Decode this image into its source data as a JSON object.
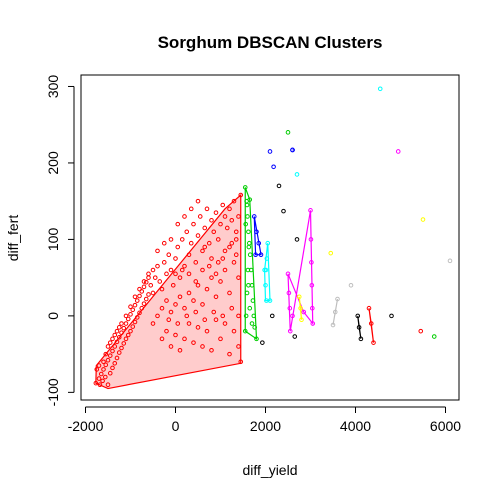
{
  "chart_data": {
    "type": "scatter",
    "title": "Sorghum DBSCAN Clusters",
    "xlabel": "diff_yield",
    "ylabel": "diff_fert",
    "xlim": [
      -2100,
      6300
    ],
    "ylim": [
      -110,
      315
    ],
    "x_ticks": [
      -2000,
      0,
      2000,
      4000,
      6000
    ],
    "y_ticks": [
      -100,
      0,
      100,
      200,
      300
    ],
    "x_tick_labels": [
      "-2000",
      "0",
      "2000",
      "4000",
      "6000"
    ],
    "y_tick_labels": [
      "-100",
      "0",
      "100",
      "200",
      "300"
    ],
    "grid": false,
    "legend": "none",
    "clusters": [
      {
        "color": "#ff0000",
        "hull": [
          [
            -1770,
            -88
          ],
          [
            -1500,
            -95
          ],
          [
            1450,
            -62
          ],
          [
            1450,
            158
          ],
          [
            1100,
            140
          ],
          [
            -1760,
            -65
          ]
        ],
        "points": [
          [
            -1770,
            -88
          ],
          [
            -1700,
            -82
          ],
          [
            -1650,
            -76
          ],
          [
            -1600,
            -70
          ],
          [
            -1550,
            -64
          ],
          [
            -1500,
            -58
          ],
          [
            -1450,
            -52
          ],
          [
            -1400,
            -46
          ],
          [
            -1350,
            -40
          ],
          [
            -1300,
            -34
          ],
          [
            -1250,
            -28
          ],
          [
            -1200,
            -22
          ],
          [
            -1150,
            -16
          ],
          [
            -1100,
            -10
          ],
          [
            -1050,
            -4
          ],
          [
            -1000,
            2
          ],
          [
            -950,
            8
          ],
          [
            -900,
            14
          ],
          [
            -850,
            20
          ],
          [
            -800,
            26
          ],
          [
            -750,
            32
          ],
          [
            -700,
            38
          ],
          [
            -650,
            44
          ],
          [
            -600,
            50
          ],
          [
            -1750,
            -70
          ],
          [
            -1700,
            -65
          ],
          [
            -1680,
            -90
          ],
          [
            -1620,
            -85
          ],
          [
            -1560,
            -80
          ],
          [
            -1500,
            -90
          ],
          [
            -1450,
            -75
          ],
          [
            -1400,
            -68
          ],
          [
            -1350,
            -62
          ],
          [
            -1300,
            -55
          ],
          [
            -1250,
            -48
          ],
          [
            -1200,
            -42
          ],
          [
            -1150,
            -36
          ],
          [
            -1100,
            -30
          ],
          [
            -1050,
            -25
          ],
          [
            -1000,
            -20
          ],
          [
            -950,
            -14
          ],
          [
            -900,
            -8
          ],
          [
            -850,
            -2
          ],
          [
            -800,
            4
          ],
          [
            -750,
            10
          ],
          [
            -700,
            16
          ],
          [
            -650,
            22
          ],
          [
            -600,
            28
          ],
          [
            -1500,
            -40
          ],
          [
            -1400,
            -30
          ],
          [
            -1300,
            -20
          ],
          [
            -1200,
            -10
          ],
          [
            -1100,
            0
          ],
          [
            -1000,
            12
          ],
          [
            -900,
            25
          ],
          [
            -800,
            35
          ],
          [
            -700,
            45
          ],
          [
            -600,
            55
          ],
          [
            -500,
            60
          ],
          [
            -1600,
            -60
          ],
          [
            -1550,
            -50
          ],
          [
            -1450,
            -35
          ],
          [
            -1350,
            -25
          ],
          [
            -1250,
            -15
          ],
          [
            -550,
            40
          ],
          [
            -500,
            30
          ],
          [
            -450,
            50
          ],
          [
            -400,
            65
          ],
          [
            -350,
            45
          ],
          [
            -300,
            35
          ],
          [
            -250,
            70
          ],
          [
            -200,
            55
          ],
          [
            -150,
            80
          ],
          [
            -100,
            60
          ],
          [
            -50,
            40
          ],
          [
            0,
            75
          ],
          [
            50,
            90
          ],
          [
            100,
            50
          ],
          [
            150,
            100
          ],
          [
            200,
            65
          ],
          [
            250,
            110
          ],
          [
            300,
            80
          ],
          [
            350,
            95
          ],
          [
            400,
            120
          ],
          [
            450,
            70
          ],
          [
            500,
            105
          ],
          [
            550,
            130
          ],
          [
            600,
            85
          ],
          [
            650,
            115
          ],
          [
            700,
            140
          ],
          [
            750,
            95
          ],
          [
            800,
            125
          ],
          [
            850,
            110
          ],
          [
            900,
            135
          ],
          [
            950,
            100
          ],
          [
            1000,
            120
          ],
          [
            1050,
            145
          ],
          [
            1100,
            130
          ],
          [
            1150,
            115
          ],
          [
            1200,
            140
          ],
          [
            1250,
            125
          ],
          [
            1300,
            150
          ],
          [
            1350,
            110
          ],
          [
            1400,
            130
          ],
          [
            1450,
            158
          ],
          [
            -500,
            -10
          ],
          [
            -400,
            0
          ],
          [
            -300,
            10
          ],
          [
            -200,
            20
          ],
          [
            -100,
            5
          ],
          [
            0,
            15
          ],
          [
            100,
            25
          ],
          [
            200,
            10
          ],
          [
            300,
            30
          ],
          [
            400,
            20
          ],
          [
            500,
            40
          ],
          [
            600,
            15
          ],
          [
            700,
            35
          ],
          [
            800,
            50
          ],
          [
            900,
            25
          ],
          [
            1000,
            45
          ],
          [
            1100,
            60
          ],
          [
            1200,
            30
          ],
          [
            1300,
            70
          ],
          [
            1400,
            50
          ],
          [
            -300,
            -30
          ],
          [
            -200,
            -20
          ],
          [
            -100,
            -40
          ],
          [
            0,
            -25
          ],
          [
            100,
            -45
          ],
          [
            200,
            -30
          ],
          [
            300,
            -10
          ],
          [
            400,
            -35
          ],
          [
            500,
            -15
          ],
          [
            600,
            -40
          ],
          [
            700,
            -20
          ],
          [
            800,
            -45
          ],
          [
            900,
            -5
          ],
          [
            1000,
            -30
          ],
          [
            1100,
            -10
          ],
          [
            1200,
            -50
          ],
          [
            1300,
            -20
          ],
          [
            1400,
            -40
          ],
          [
            1450,
            -60
          ],
          [
            -400,
            85
          ],
          [
            -250,
            95
          ],
          [
            -100,
            100
          ],
          [
            50,
            120
          ],
          [
            200,
            130
          ],
          [
            350,
            140
          ],
          [
            500,
            150
          ],
          [
            650,
            90
          ],
          [
            800,
            75
          ],
          [
            950,
            70
          ],
          [
            1100,
            85
          ],
          [
            1250,
            95
          ],
          [
            1350,
            80
          ],
          [
            0,
            55
          ],
          [
            150,
            60
          ],
          [
            300,
            55
          ],
          [
            450,
            45
          ],
          [
            600,
            60
          ],
          [
            750,
            65
          ],
          [
            900,
            55
          ],
          [
            1050,
            75
          ],
          [
            1200,
            90
          ],
          [
            1350,
            100
          ],
          [
            -150,
            -5
          ],
          [
            50,
            -10
          ],
          [
            250,
            0
          ],
          [
            450,
            5
          ],
          [
            650,
            -5
          ],
          [
            850,
            5
          ],
          [
            1050,
            0
          ],
          [
            1250,
            10
          ],
          [
            1400,
            0
          ]
        ]
      },
      {
        "color": "#00cd00",
        "hull": [
          [
            1550,
            168
          ],
          [
            1650,
            152
          ],
          [
            1800,
            -30
          ],
          [
            1550,
            -20
          ]
        ],
        "points": [
          [
            1550,
            168
          ],
          [
            1580,
            150
          ],
          [
            1600,
            130
          ],
          [
            1620,
            110
          ],
          [
            1640,
            95
          ],
          [
            1650,
            152
          ],
          [
            1660,
            80
          ],
          [
            1680,
            60
          ],
          [
            1700,
            40
          ],
          [
            1720,
            20
          ],
          [
            1740,
            0
          ],
          [
            1760,
            -15
          ],
          [
            1800,
            -30
          ],
          [
            1550,
            -20
          ],
          [
            1570,
            0
          ],
          [
            1590,
            30
          ],
          [
            1610,
            60
          ],
          [
            1630,
            90
          ],
          [
            1560,
            120
          ],
          [
            1590,
            145
          ],
          [
            1620,
            40
          ],
          [
            1650,
            10
          ],
          [
            1700,
            -10
          ]
        ]
      },
      {
        "color": "#0000ff",
        "hull": [
          [
            1750,
            130
          ],
          [
            1900,
            80
          ],
          [
            1780,
            80
          ]
        ],
        "points": [
          [
            1750,
            130
          ],
          [
            1800,
            110
          ],
          [
            1850,
            95
          ],
          [
            1900,
            80
          ],
          [
            1780,
            80
          ]
        ]
      },
      {
        "color": "#00ffff",
        "hull": [
          [
            2050,
            95
          ],
          [
            2100,
            20
          ],
          [
            2000,
            20
          ],
          [
            1980,
            60
          ]
        ],
        "points": [
          [
            2050,
            95
          ],
          [
            2030,
            75
          ],
          [
            2010,
            60
          ],
          [
            1980,
            60
          ],
          [
            2000,
            40
          ],
          [
            2020,
            20
          ],
          [
            2100,
            20
          ]
        ]
      },
      {
        "color": "#ff00ff",
        "hull": [
          [
            3000,
            138
          ],
          [
            3050,
            -10
          ],
          [
            2850,
            5
          ],
          [
            2500,
            55
          ],
          [
            2550,
            -20
          ]
        ],
        "points": [
          [
            3000,
            138
          ],
          [
            3010,
            100
          ],
          [
            3020,
            70
          ],
          [
            3030,
            40
          ],
          [
            3040,
            10
          ],
          [
            3050,
            -10
          ],
          [
            2850,
            5
          ],
          [
            2500,
            55
          ],
          [
            2520,
            30
          ],
          [
            2540,
            10
          ],
          [
            2550,
            -20
          ],
          [
            2600,
            0
          ]
        ]
      },
      {
        "color": "#ffff00",
        "hull": [
          [
            2750,
            25
          ],
          [
            2800,
            -5
          ],
          [
            2780,
            10
          ]
        ],
        "points": [
          [
            2750,
            25
          ],
          [
            2780,
            10
          ],
          [
            2800,
            -5
          ]
        ]
      },
      {
        "color": "#bebebe",
        "hull": [
          [
            3600,
            22
          ],
          [
            3500,
            -12
          ],
          [
            3550,
            5
          ]
        ],
        "points": [
          [
            3600,
            22
          ],
          [
            3550,
            5
          ],
          [
            3500,
            -12
          ]
        ]
      },
      {
        "color": "#000000",
        "hull": [
          [
            4050,
            0
          ],
          [
            4120,
            -30
          ],
          [
            4080,
            -15
          ]
        ],
        "points": [
          [
            4050,
            0
          ],
          [
            4080,
            -15
          ],
          [
            4120,
            -30
          ]
        ]
      },
      {
        "color": "#ff0000",
        "hull": [
          [
            4300,
            10
          ],
          [
            4400,
            -35
          ],
          [
            4350,
            -10
          ]
        ],
        "points": [
          [
            4300,
            10
          ],
          [
            4350,
            -10
          ],
          [
            4400,
            -35
          ]
        ]
      },
      {
        "color": "#0000ff",
        "hull": [
          [
            2600,
            217
          ],
          [
            2650,
            217
          ]
        ],
        "points": [
          [
            2600,
            217
          ]
        ]
      }
    ],
    "noise": [
      {
        "x": 2100,
        "y": 215,
        "color": "#0000ff"
      },
      {
        "x": 2180,
        "y": 195,
        "color": "#0000ff"
      },
      {
        "x": 2500,
        "y": 240,
        "color": "#00cd00"
      },
      {
        "x": 2600,
        "y": 217,
        "color": "#0000ff"
      },
      {
        "x": 2700,
        "y": 185,
        "color": "#00ffff"
      },
      {
        "x": 2300,
        "y": 170,
        "color": "#000000"
      },
      {
        "x": 2400,
        "y": 137,
        "color": "#000000"
      },
      {
        "x": 2700,
        "y": 100,
        "color": "#000000"
      },
      {
        "x": 2150,
        "y": 0,
        "color": "#000000"
      },
      {
        "x": 1930,
        "y": -35,
        "color": "#000000"
      },
      {
        "x": 2650,
        "y": -27,
        "color": "#000000"
      },
      {
        "x": 3450,
        "y": 82,
        "color": "#ffff00"
      },
      {
        "x": 3900,
        "y": 40,
        "color": "#bebebe"
      },
      {
        "x": 4550,
        "y": 297,
        "color": "#00ffff"
      },
      {
        "x": 4950,
        "y": 215,
        "color": "#ff00ff"
      },
      {
        "x": 5500,
        "y": 126,
        "color": "#ffff00"
      },
      {
        "x": 6100,
        "y": 72,
        "color": "#bebebe"
      },
      {
        "x": 4800,
        "y": 0,
        "color": "#000000"
      },
      {
        "x": 5450,
        "y": -20,
        "color": "#ff0000"
      },
      {
        "x": 5750,
        "y": -27,
        "color": "#00cd00"
      }
    ]
  }
}
